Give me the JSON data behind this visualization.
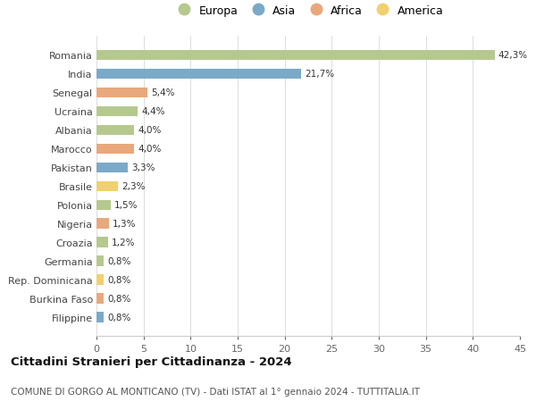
{
  "countries": [
    "Romania",
    "India",
    "Senegal",
    "Ucraina",
    "Albania",
    "Marocco",
    "Pakistan",
    "Brasile",
    "Polonia",
    "Nigeria",
    "Croazia",
    "Germania",
    "Rep. Dominicana",
    "Burkina Faso",
    "Filippine"
  ],
  "values": [
    42.3,
    21.7,
    5.4,
    4.4,
    4.0,
    4.0,
    3.3,
    2.3,
    1.5,
    1.3,
    1.2,
    0.8,
    0.8,
    0.8,
    0.8
  ],
  "labels": [
    "42,3%",
    "21,7%",
    "5,4%",
    "4,4%",
    "4,0%",
    "4,0%",
    "3,3%",
    "2,3%",
    "1,5%",
    "1,3%",
    "1,2%",
    "0,8%",
    "0,8%",
    "0,8%",
    "0,8%"
  ],
  "continents": [
    "Europa",
    "Asia",
    "Africa",
    "Europa",
    "Europa",
    "Africa",
    "Asia",
    "America",
    "Europa",
    "Africa",
    "Europa",
    "Europa",
    "America",
    "Africa",
    "Asia"
  ],
  "continent_colors": {
    "Europa": "#b5c98e",
    "Asia": "#7aaac8",
    "Africa": "#e8a87c",
    "America": "#f0d070"
  },
  "legend_items": [
    "Europa",
    "Asia",
    "Africa",
    "America"
  ],
  "title": "Cittadini Stranieri per Cittadinanza - 2024",
  "subtitle": "COMUNE DI GORGO AL MONTICANO (TV) - Dati ISTAT al 1° gennaio 2024 - TUTTITALIA.IT",
  "xlim": [
    0,
    45
  ],
  "xticks": [
    0,
    5,
    10,
    15,
    20,
    25,
    30,
    35,
    40,
    45
  ],
  "background_color": "#ffffff",
  "grid_color": "#dddddd",
  "bar_height": 0.55
}
